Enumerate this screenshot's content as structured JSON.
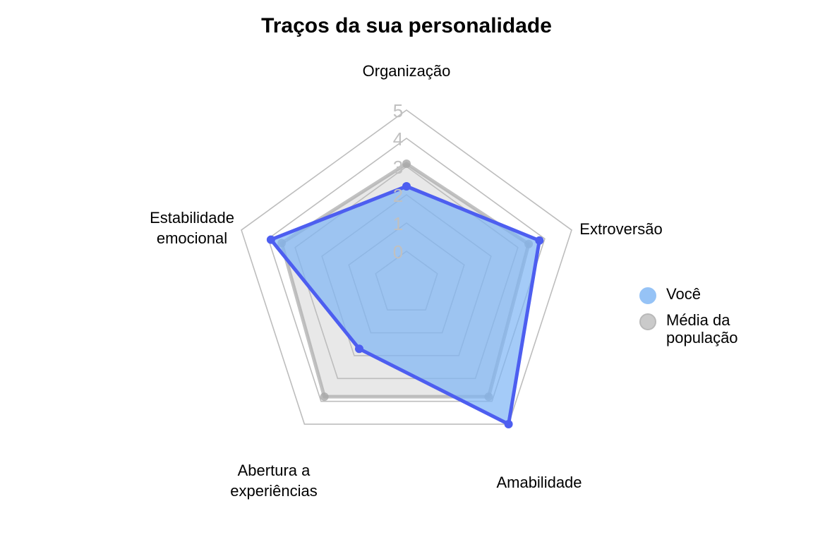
{
  "chart_data": {
    "type": "radar",
    "title": "Traços da sua personalidade",
    "axes": [
      "Organização",
      "Extroversão",
      "Amabilidade",
      "Abertura a\nexperiências",
      "Estabilidade\nemocional"
    ],
    "range": [
      0,
      5
    ],
    "ticks": [
      0,
      1,
      2,
      3,
      4,
      5
    ],
    "series": [
      {
        "name": "Média da\npopulação",
        "values": [
          3.1,
          3.4,
          3.8,
          3.8,
          3.5
        ],
        "fill": "#bdbdbd",
        "line": "#a8a8a8"
      },
      {
        "name": "Você",
        "values": [
          2.3,
          3.8,
          5.0,
          1.7,
          3.9
        ],
        "fill": "#7db5f5",
        "line": "#4d5ef0"
      }
    ],
    "grid": true,
    "legend": "right"
  }
}
